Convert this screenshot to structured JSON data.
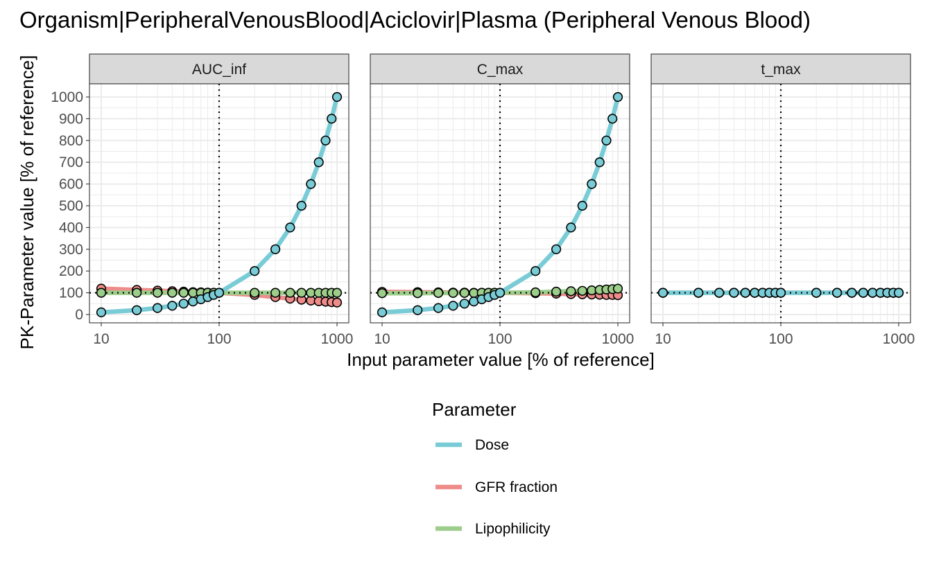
{
  "chart_data": {
    "type": "line",
    "title": "Organism|PeripheralVenousBlood|Aciclovir|Plasma (Peripheral Venous Blood)",
    "xlabel": "Input parameter value [% of reference]",
    "ylabel": "PK-Parameter value [% of reference]",
    "x_scale": "log",
    "xlim": [
      10,
      1000
    ],
    "ylim": [
      0,
      1000
    ],
    "x_ticks": [
      10,
      100,
      1000
    ],
    "x_tick_labels": [
      "10",
      "100",
      "1000"
    ],
    "y_ticks": [
      0,
      100,
      200,
      300,
      400,
      500,
      600,
      700,
      800,
      900,
      1000
    ],
    "y_tick_labels": [
      "0",
      "100",
      "200",
      "300",
      "400",
      "500",
      "600",
      "700",
      "800",
      "900",
      "1000"
    ],
    "grid": true,
    "reference_lines": {
      "x": 100,
      "y": 100
    },
    "x": [
      10,
      20,
      30,
      40,
      50,
      60,
      70,
      80,
      90,
      100,
      200,
      300,
      400,
      500,
      600,
      700,
      800,
      900,
      1000
    ],
    "legend": {
      "title": "Parameter",
      "position": "bottom"
    },
    "colors": {
      "Dose": "#79ccd6",
      "GFR fraction": "#ee8c8a",
      "Lipophilicity": "#9ccd8a"
    },
    "panels": [
      {
        "name": "AUC_inf",
        "series": [
          {
            "name": "Dose",
            "values": [
              10,
              20,
              30,
              40,
              50,
              60,
              70,
              80,
              90,
              100,
              200,
              300,
              400,
              500,
              600,
              700,
              800,
              900,
              1000
            ]
          },
          {
            "name": "GFR fraction",
            "values": [
              119,
              113,
              110,
              107,
              105,
              103,
              102,
              101,
              100,
              100,
              90,
              80,
              73,
              68,
              64,
              61,
              59,
              57,
              55
            ]
          },
          {
            "name": "Lipophilicity",
            "values": [
              100,
              100,
              100,
              100,
              100,
              100,
              100,
              100,
              100,
              100,
              100,
              100,
              100,
              100,
              100,
              100,
              100,
              100,
              100
            ]
          }
        ]
      },
      {
        "name": "C_max",
        "series": [
          {
            "name": "Dose",
            "values": [
              10,
              20,
              30,
              40,
              50,
              60,
              70,
              80,
              90,
              100,
              200,
              300,
              400,
              500,
              600,
              700,
              800,
              900,
              1000
            ]
          },
          {
            "name": "GFR fraction",
            "values": [
              104,
              103,
              102,
              101,
              101,
              100,
              100,
              100,
              100,
              100,
              98,
              96,
              94,
              93,
              92,
              91,
              90,
              90,
              89
            ]
          },
          {
            "name": "Lipophilicity",
            "values": [
              98,
              98,
              99,
              99,
              99,
              99,
              100,
              100,
              100,
              100,
              102,
              105,
              107,
              109,
              111,
              113,
              115,
              117,
              119
            ]
          }
        ]
      },
      {
        "name": "t_max",
        "series": [
          {
            "name": "Dose",
            "values": [
              100,
              100,
              100,
              100,
              100,
              100,
              100,
              100,
              100,
              100,
              100,
              100,
              100,
              100,
              100,
              100,
              100,
              100,
              100
            ]
          },
          {
            "name": "GFR fraction",
            "values": [
              100,
              100,
              100,
              100,
              100,
              100,
              100,
              100,
              100,
              100,
              100,
              100,
              100,
              100,
              100,
              100,
              100,
              100,
              100
            ]
          },
          {
            "name": "Lipophilicity",
            "values": [
              100,
              100,
              100,
              100,
              100,
              100,
              100,
              100,
              100,
              100,
              100,
              100,
              100,
              100,
              100,
              100,
              100,
              100,
              100
            ]
          }
        ]
      }
    ]
  }
}
